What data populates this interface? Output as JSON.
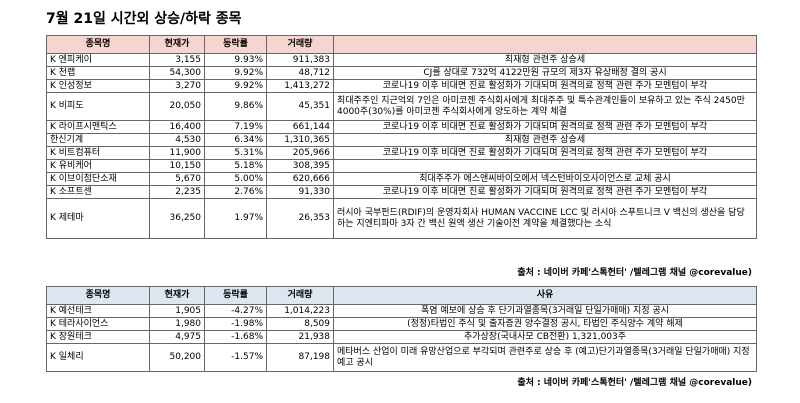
{
  "title": "7월 21일  시간외 상승/하락 종목",
  "rise_table": {
    "headers": [
      "종목명",
      "현재가",
      "등락률",
      "거래량",
      ""
    ],
    "rows": [
      {
        "name": "K 엔피케이",
        "price": "3,155",
        "change": "9.93%",
        "volume": "911,383",
        "note": "최재형 관련주 상승세"
      },
      {
        "name": "K 천랩",
        "price": "54,300",
        "change": "9.92%",
        "volume": "48,712",
        "note": "CJ를 상대로 732억 4122만원 규모의 제3자 유상배정 결의 공시"
      },
      {
        "name": "K 인성정보",
        "price": "3,270",
        "price_raw": "3,270",
        "change": "9.92%",
        "volume": "1,413,272",
        "note": "코로나19 이후 비대면 진료 활성화가 기대되며 원격의료 정책 관련 주가 모멘텀이 부각"
      },
      {
        "name": "K 비피도",
        "price": "20,050",
        "change": "9.86%",
        "volume": "45,351",
        "note": "최대주주인 지근억외 7인은 아미코젠 주식회사에게 최대주주 및 특수관계인들이 보유하고 있는 주식 2450만4000주(30%)를 아미코젠 주식회사에게 양도하는 계약 체결"
      },
      {
        "name": "K 라이프시맨틱스",
        "price": "16,400",
        "change": "7.19%",
        "volume": "661,144",
        "note": "코로나19 이후 비대면 진료 활성화가 기대되며 원격의료 정책 관련 주가 모멘텀이 부각"
      },
      {
        "name": "한신기계",
        "price": "4,530",
        "change": "6.34%",
        "volume": "1,310,365",
        "note": "최재형 관련주 상승세"
      },
      {
        "name": "K 비트컴퓨터",
        "price": "11,900",
        "change": "5.31%",
        "volume": "205,966",
        "note": "코로나19 이후 비대면 진료 활성화가 기대되며 원격의료 정책 관련 주가 모멘텀이 부각"
      },
      {
        "name": "K 유비케어",
        "price": "10,150",
        "change": "5.18%",
        "volume": "308,395",
        "note": ""
      },
      {
        "name": "K 이브이첨단소재",
        "price": "5,670",
        "change": "5.00%",
        "volume": "620,666",
        "note": "최대주주가 에스앤씨바이오에서 넥스턴바이오사이언스로 교체 공시"
      },
      {
        "name": "K 소프트센",
        "price": "2,235",
        "change": "2.76%",
        "volume": "91,330",
        "note": "코로나19 이후 비대면 진료 활성화가 기대되며 원격의료 정책 관련 주가 모멘텀이 부각"
      },
      {
        "name": "K 제테마",
        "price": "36,250",
        "change": "1.97%",
        "volume": "26,353",
        "note": "러시아 국부펀드(RDIF)의 운영자회사 HUMAN VACCINE LCC 및 러시아 스푸트니크 V 백신의 생산을 담당하는 지엔티파마 3자 간 백신 원액 생산 기술이전 계약을 체결했다는 소식"
      }
    ],
    "source": "출처 : 네이버 카페'스톡헌터' /텔레그램 채널 @corevalue)"
  },
  "fall_table": {
    "headers": [
      "종목명",
      "현재가",
      "등락률",
      "거래량",
      "사유"
    ],
    "rows": [
      {
        "name": "K 예선테크",
        "price": "1,905",
        "change": "-4.27%",
        "volume": "1,014,223",
        "note": "폭염 예보에 상승 후 단기과열종목(3거래일 단일가매매) 지정 공시"
      },
      {
        "name": "K 테라사이언스",
        "price": "1,980",
        "change": "-1.98%",
        "volume": "8,509",
        "note": "(정정)타법인 주식 및 출자증권 양수결정 공시, 타법인 주식양수 계약 해제"
      },
      {
        "name": "K 장원테크",
        "price": "4,975",
        "change": "-1.68%",
        "volume": "21,938",
        "note": "추가상장(국내사모 CB전환) 1,321,003주"
      },
      {
        "name": "K 일체리",
        "price": "50,200",
        "change": "-1.57%",
        "volume": "87,198",
        "note": "메타버스 산업이 미래 유망산업으로 부각되며 관련주로 상승 후 (예고)단기과열종목(3거래일 단일가매매) 지정예고 공시"
      }
    ],
    "source": "출처 : 네이버 카페'스톡헌터' /텔레그램 채널 @corevalue)"
  }
}
